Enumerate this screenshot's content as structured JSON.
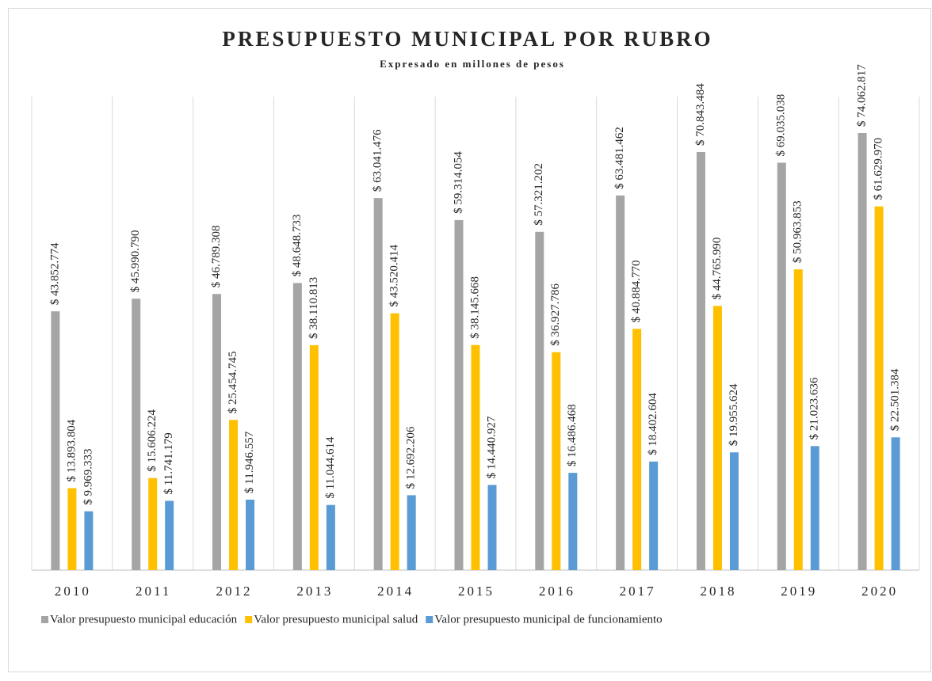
{
  "chart_data": {
    "type": "bar",
    "title": "PRESUPUESTO MUNICIPAL POR RUBRO",
    "subtitle": "Expresado en millones de pesos",
    "categories": [
      "2010",
      "2011",
      "2012",
      "2013",
      "2014",
      "2015",
      "2016",
      "2017",
      "2018",
      "2019",
      "2020"
    ],
    "series": [
      {
        "name": "Valor presupuesto municipal educación",
        "color": "#a5a5a5",
        "values": [
          43852774,
          45990790,
          46789308,
          48648733,
          63041476,
          59314054,
          57321202,
          63481462,
          70843484,
          69035038,
          74062817
        ],
        "value_labels": [
          "$ 43.852.774",
          "$ 45.990.790",
          "$ 46.789.308",
          "$ 48.648.733",
          "$ 63.041.476",
          "$ 59.314.054",
          "$ 57.321.202",
          "$ 63.481.462",
          "$ 70.843.484",
          "$ 69.035.038",
          "$ 74.062.817"
        ]
      },
      {
        "name": "Valor presupuesto municipal salud",
        "color": "#ffc000",
        "values": [
          13893804,
          15606224,
          25454745,
          38110813,
          43520414,
          38145668,
          36927786,
          40884770,
          44765990,
          50963853,
          61629970
        ],
        "value_labels": [
          "$ 13.893.804",
          "$ 15.606.224",
          "$ 25.454.745",
          "$ 38.110.813",
          "$ 43.520.414",
          "$ 38.145.668",
          "$ 36.927.786",
          "$ 40.884.770",
          "$ 44.765.990",
          "$ 50.963.853",
          "$ 61.629.970"
        ]
      },
      {
        "name": "Valor presupuesto municipal de funcionamiento",
        "color": "#5b9bd5",
        "values": [
          9969333,
          11741179,
          11946557,
          11044614,
          12692206,
          14440927,
          16486468,
          18402604,
          19955624,
          21023636,
          22501384
        ],
        "value_labels": [
          "$ 9.969.333",
          "$ 11.741.179",
          "$ 11.946.557",
          "$ 11.044.614",
          "$ 12.692.206",
          "$ 14.440.927",
          "$ 16.486.468",
          "$ 18.402.604",
          "$ 19.955.624",
          "$ 21.023.636",
          "$ 22.501.384"
        ]
      }
    ]
  }
}
